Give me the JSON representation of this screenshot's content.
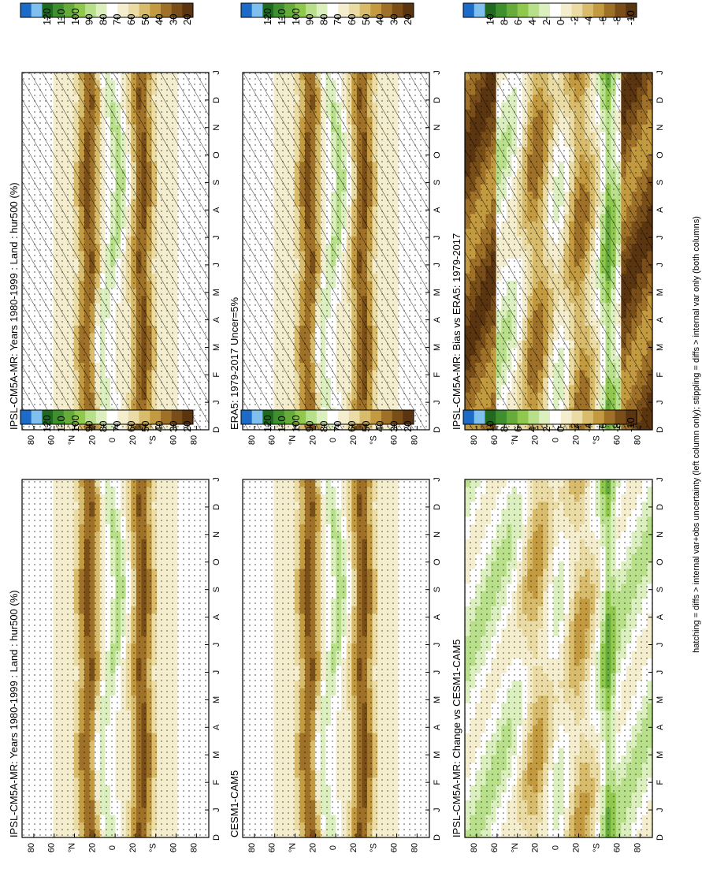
{
  "figure": {
    "footnote": "hatching = diffs > internal var+obs uncertainty (left column only); stippling = diffs > internal var only (both columns)"
  },
  "colors": {
    "abs_scale": [
      "#1d6bc9",
      "#7fc0ee",
      "#1f6a1f",
      "#3f8f2f",
      "#67ab3b",
      "#90c84e",
      "#b8e08a",
      "#dcefbf",
      "#ffffff",
      "#f4eecf",
      "#eadca4",
      "#d8bc6c",
      "#c39a3f",
      "#9f7128",
      "#7a4e18",
      "#5a3510"
    ],
    "diff_scale": [
      "#1d6bc9",
      "#7fc0ee",
      "#1f6a1f",
      "#3f8f2f",
      "#67ab3b",
      "#90c84e",
      "#b8e08a",
      "#dcefbf",
      "#ffffff",
      "#f4eecf",
      "#eadca4",
      "#d8bc6c",
      "#c39a3f",
      "#9f7128",
      "#7a4e18",
      "#5a3510"
    ]
  },
  "chart_data": [
    {
      "type": "heatmap",
      "title": "IPSL-CM5A-MR: Years 1980-1999 : Land : hur500 (%)",
      "x_ticks": [
        "D",
        "J",
        "F",
        "M",
        "A",
        "M",
        "J",
        "J",
        "A",
        "S",
        "O",
        "N",
        "D",
        "J"
      ],
      "y_ticks": [
        "80",
        "60",
        "°N",
        "20",
        "0",
        "20",
        "°S",
        "60",
        "80"
      ],
      "colorbar_ticks": [
        "120",
        "110",
        "100",
        "90",
        "80",
        "70",
        "60",
        "50",
        "40",
        "30",
        "20"
      ],
      "colorbar_range": [
        10,
        130
      ],
      "hatching": true,
      "stippling": true
    },
    {
      "type": "heatmap",
      "title": "IPSL-CM5A-MR: Years 1980-1999 : Land : hur500 (%)",
      "x_ticks": [
        "D",
        "J",
        "F",
        "M",
        "A",
        "M",
        "J",
        "J",
        "A",
        "S",
        "O",
        "N",
        "D",
        "J"
      ],
      "y_ticks": [
        "80",
        "60",
        "°N",
        "20",
        "0",
        "20",
        "°S",
        "60",
        "80"
      ],
      "colorbar_ticks": [
        "120",
        "110",
        "100",
        "90",
        "80",
        "70",
        "60",
        "50",
        "40",
        "30",
        "20"
      ],
      "colorbar_range": [
        10,
        130
      ],
      "hatching": false,
      "stippling": true
    },
    {
      "type": "heatmap",
      "title": "ERA5: 1979-2017 Uncer=5%",
      "x_ticks": [
        "D",
        "J",
        "F",
        "M",
        "A",
        "M",
        "J",
        "J",
        "A",
        "S",
        "O",
        "N",
        "D",
        "J"
      ],
      "y_ticks": [
        "80",
        "60",
        "°N",
        "20",
        "0",
        "20",
        "°S",
        "60",
        "80"
      ],
      "colorbar_ticks": [
        "120",
        "110",
        "100",
        "90",
        "80",
        "70",
        "60",
        "50",
        "40",
        "30",
        "20"
      ],
      "colorbar_range": [
        10,
        130
      ],
      "hatching": true,
      "stippling": true
    },
    {
      "type": "heatmap",
      "title": "CESM1-CAM5",
      "x_ticks": [
        "D",
        "J",
        "F",
        "M",
        "A",
        "M",
        "J",
        "J",
        "A",
        "S",
        "O",
        "N",
        "D",
        "J"
      ],
      "y_ticks": [
        "80",
        "60",
        "°N",
        "20",
        "0",
        "20",
        "°S",
        "60",
        "80"
      ],
      "colorbar_ticks": [
        "120",
        "110",
        "100",
        "90",
        "80",
        "70",
        "60",
        "50",
        "40",
        "30",
        "20"
      ],
      "colorbar_range": [
        10,
        130
      ],
      "hatching": false,
      "stippling": true
    },
    {
      "type": "heatmap",
      "title": "IPSL-CM5A-MR: Bias vs ERA5: 1979-2017",
      "x_ticks": [
        "D",
        "J",
        "F",
        "M",
        "A",
        "M",
        "J",
        "J",
        "A",
        "S",
        "O",
        "N",
        "D",
        "J"
      ],
      "y_ticks": [
        "80",
        "60",
        "°N",
        "20",
        "0",
        "20",
        "°S",
        "60",
        "80"
      ],
      "colorbar_ticks": [
        "10",
        "8",
        "6",
        "4",
        "2",
        "0",
        "-2",
        "-4",
        "-6",
        "-8",
        "-10"
      ],
      "colorbar_range": [
        -12,
        12
      ],
      "hatching": true,
      "stippling": true
    },
    {
      "type": "heatmap",
      "title": "IPSL-CM5A-MR: Change vs CESM1-CAM5",
      "x_ticks": [
        "D",
        "J",
        "F",
        "M",
        "A",
        "M",
        "J",
        "J",
        "A",
        "S",
        "O",
        "N",
        "D",
        "J"
      ],
      "y_ticks": [
        "80",
        "60",
        "°N",
        "20",
        "0",
        "20",
        "°S",
        "60",
        "80"
      ],
      "colorbar_ticks": [
        "10",
        "8",
        "6",
        "4",
        "2",
        "0",
        "-2",
        "-4",
        "-6",
        "-8",
        "-10"
      ],
      "colorbar_range": [
        -12,
        12
      ],
      "hatching": false,
      "stippling": true
    }
  ]
}
